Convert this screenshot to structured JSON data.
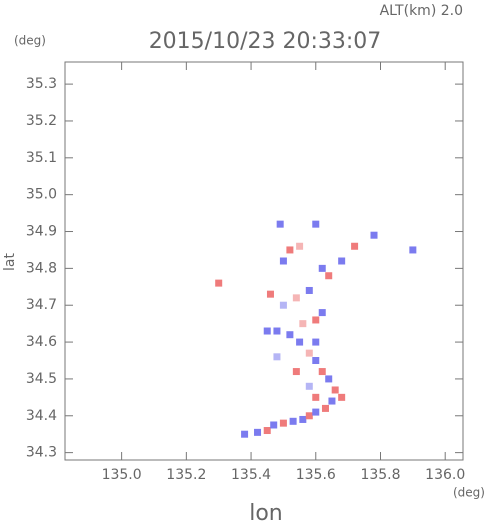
{
  "chart_data": {
    "type": "scatter",
    "title": "2015/10/23 20:33:07",
    "altitude_label": "ALT(km) 2.0",
    "y_unit": "(deg)",
    "x_unit": "(deg)",
    "xlabel": "lon",
    "ylabel": "lat",
    "xlim": [
      134.825,
      136.055
    ],
    "ylim": [
      34.28,
      35.36
    ],
    "xticks": [
      {
        "value": 135,
        "label": "135.0"
      },
      135.2,
      135.4,
      135.6,
      135.8,
      {
        "value": 136,
        "label": "136.0"
      }
    ],
    "yticks": [
      34.3,
      34.4,
      34.5,
      34.6,
      34.7,
      34.8,
      34.9,
      {
        "value": 35,
        "label": "35.0"
      },
      35.1,
      35.2,
      35.3
    ],
    "x": [
      135.38,
      135.42,
      135.45,
      135.47,
      135.5,
      135.53,
      135.56,
      135.58,
      135.6,
      135.63,
      135.65,
      135.68,
      135.66,
      135.64,
      135.62,
      135.6,
      135.58,
      135.55,
      135.52,
      135.48,
      135.56,
      135.6,
      135.62,
      135.5,
      135.54,
      135.46,
      135.58,
      135.64,
      135.62,
      135.68,
      135.72,
      135.78,
      135.52,
      135.5,
      135.49,
      135.6,
      135.9,
      135.3,
      135.55,
      135.45,
      135.48,
      135.6,
      135.54,
      135.58,
      135.6
    ],
    "y": [
      34.35,
      34.355,
      34.36,
      34.375,
      34.38,
      34.385,
      34.39,
      34.4,
      34.41,
      34.42,
      34.44,
      34.45,
      34.47,
      34.5,
      34.52,
      34.55,
      34.57,
      34.6,
      34.62,
      34.63,
      34.65,
      34.66,
      34.68,
      34.7,
      34.72,
      34.73,
      34.74,
      34.78,
      34.8,
      34.82,
      34.86,
      34.89,
      34.85,
      34.82,
      34.92,
      34.92,
      34.85,
      34.76,
      34.86,
      34.63,
      34.56,
      34.6,
      34.52,
      34.48,
      34.45
    ],
    "colors": [
      "#7b7bef",
      "#7b7bef",
      "#ef7b7b",
      "#7b7bef",
      "#ef7b7b",
      "#7b7bef",
      "#7b7bef",
      "#ef7b7b",
      "#7b7bef",
      "#ef7b7b",
      "#7b7bef",
      "#ef7b7b",
      "#ef7b7b",
      "#7b7bef",
      "#ef7b7b",
      "#7b7bef",
      "#f5b5b5",
      "#7b7bef",
      "#7b7bef",
      "#7b7bef",
      "#f5b5b5",
      "#ef7b7b",
      "#7b7bef",
      "#b5b5f5",
      "#f5b5b5",
      "#ef7b7b",
      "#7b7bef",
      "#ef7b7b",
      "#7b7bef",
      "#7b7bef",
      "#ef7b7b",
      "#7b7bef",
      "#ef7b7b",
      "#7b7bef",
      "#7b7bef",
      "#7b7bef",
      "#7b7bef",
      "#ef7b7b",
      "#f5b5b5",
      "#7b7bef",
      "#b5b5f5",
      "#7b7bef",
      "#ef7b7b",
      "#b5b5f5",
      "#ef7b7b"
    ]
  }
}
